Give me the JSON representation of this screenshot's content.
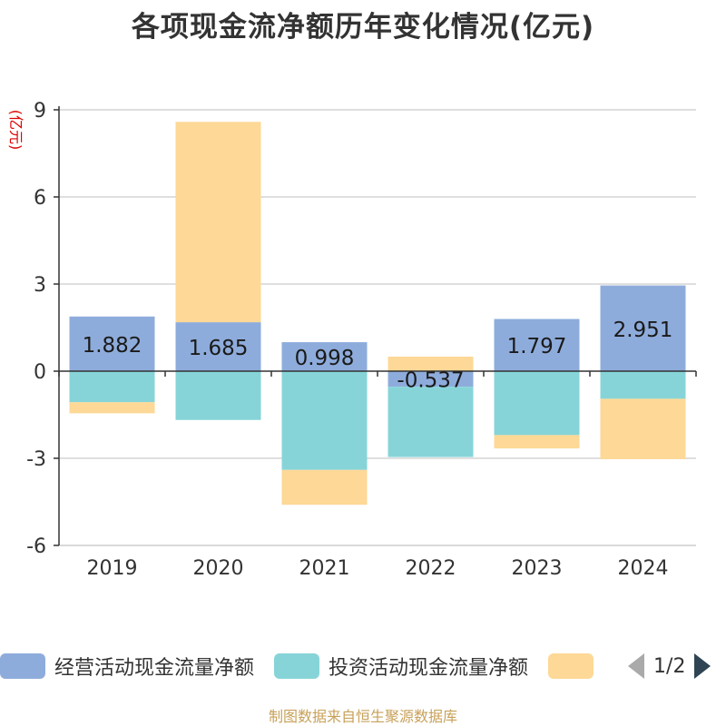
{
  "chart_data": {
    "type": "bar",
    "title": "各项现金流净额历年变化情况(亿元)",
    "ylabel": "(亿元)",
    "categories": [
      "2019",
      "2020",
      "2021",
      "2022",
      "2023",
      "2024"
    ],
    "ylim": [
      -6,
      9
    ],
    "yticks": [
      9,
      6,
      3,
      0,
      -3,
      -6
    ],
    "stacked": true,
    "grid": true,
    "series": [
      {
        "name": "经营活动现金流量净额",
        "color": "#8eacdb",
        "values": [
          1.882,
          1.685,
          0.998,
          -0.537,
          1.797,
          2.951
        ],
        "show_labels": true
      },
      {
        "name": "投资活动现金流量净额",
        "color": "#86d4d8",
        "values": [
          -1.07,
          -1.68,
          -3.4,
          -2.42,
          -2.2,
          -0.95
        ],
        "show_labels": false
      },
      {
        "name": "",
        "color": "#fdd896",
        "values": [
          -0.38,
          6.9,
          -1.2,
          0.5,
          -0.46,
          -2.08
        ],
        "show_labels": false
      }
    ],
    "legend_position": "bottom",
    "legend_pager": "1/2"
  },
  "source": "制图数据来自恒生聚源数据库"
}
